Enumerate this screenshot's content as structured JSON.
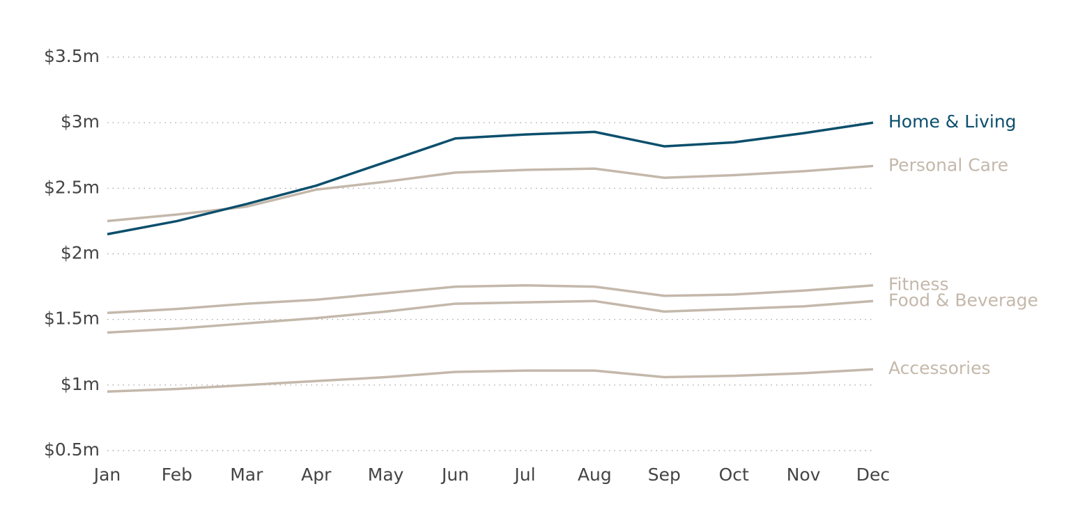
{
  "chart_data": {
    "type": "line",
    "categories": [
      "Jan",
      "Feb",
      "Mar",
      "Apr",
      "May",
      "Jun",
      "Jul",
      "Aug",
      "Sep",
      "Oct",
      "Nov",
      "Dec"
    ],
    "ylim": [
      0.5,
      3.5
    ],
    "yticks": [
      {
        "value": 0.5,
        "label": "$0.5m"
      },
      {
        "value": 1,
        "label": "$1m"
      },
      {
        "value": 1.5,
        "label": "$1.5m"
      },
      {
        "value": 2,
        "label": "$2m"
      },
      {
        "value": 2.5,
        "label": "$2.5m"
      },
      {
        "value": 3,
        "label": "$3m"
      },
      {
        "value": 3.5,
        "label": "$3.5m"
      }
    ],
    "grid": true,
    "series": [
      {
        "name": "Personal Care",
        "color": "#c4b8ab",
        "values": [
          2.25,
          2.3,
          2.36,
          2.49,
          2.55,
          2.62,
          2.64,
          2.65,
          2.58,
          2.6,
          2.63,
          2.67
        ]
      },
      {
        "name": "Fitness",
        "color": "#c4b8ab",
        "values": [
          1.55,
          1.58,
          1.62,
          1.65,
          1.7,
          1.75,
          1.76,
          1.75,
          1.68,
          1.69,
          1.72,
          1.76
        ]
      },
      {
        "name": "Food & Beverage",
        "color": "#c4b8ab",
        "values": [
          1.4,
          1.43,
          1.47,
          1.51,
          1.56,
          1.62,
          1.63,
          1.64,
          1.56,
          1.58,
          1.6,
          1.64
        ]
      },
      {
        "name": "Accessories",
        "color": "#c4b8ab",
        "values": [
          0.95,
          0.97,
          1.0,
          1.03,
          1.06,
          1.1,
          1.11,
          1.11,
          1.06,
          1.07,
          1.09,
          1.12
        ]
      },
      {
        "name": "Home & Living",
        "color": "#0b4f6c",
        "values": [
          2.15,
          2.25,
          2.38,
          2.52,
          2.7,
          2.88,
          2.91,
          2.93,
          2.82,
          2.85,
          2.92,
          3.0
        ]
      }
    ]
  }
}
